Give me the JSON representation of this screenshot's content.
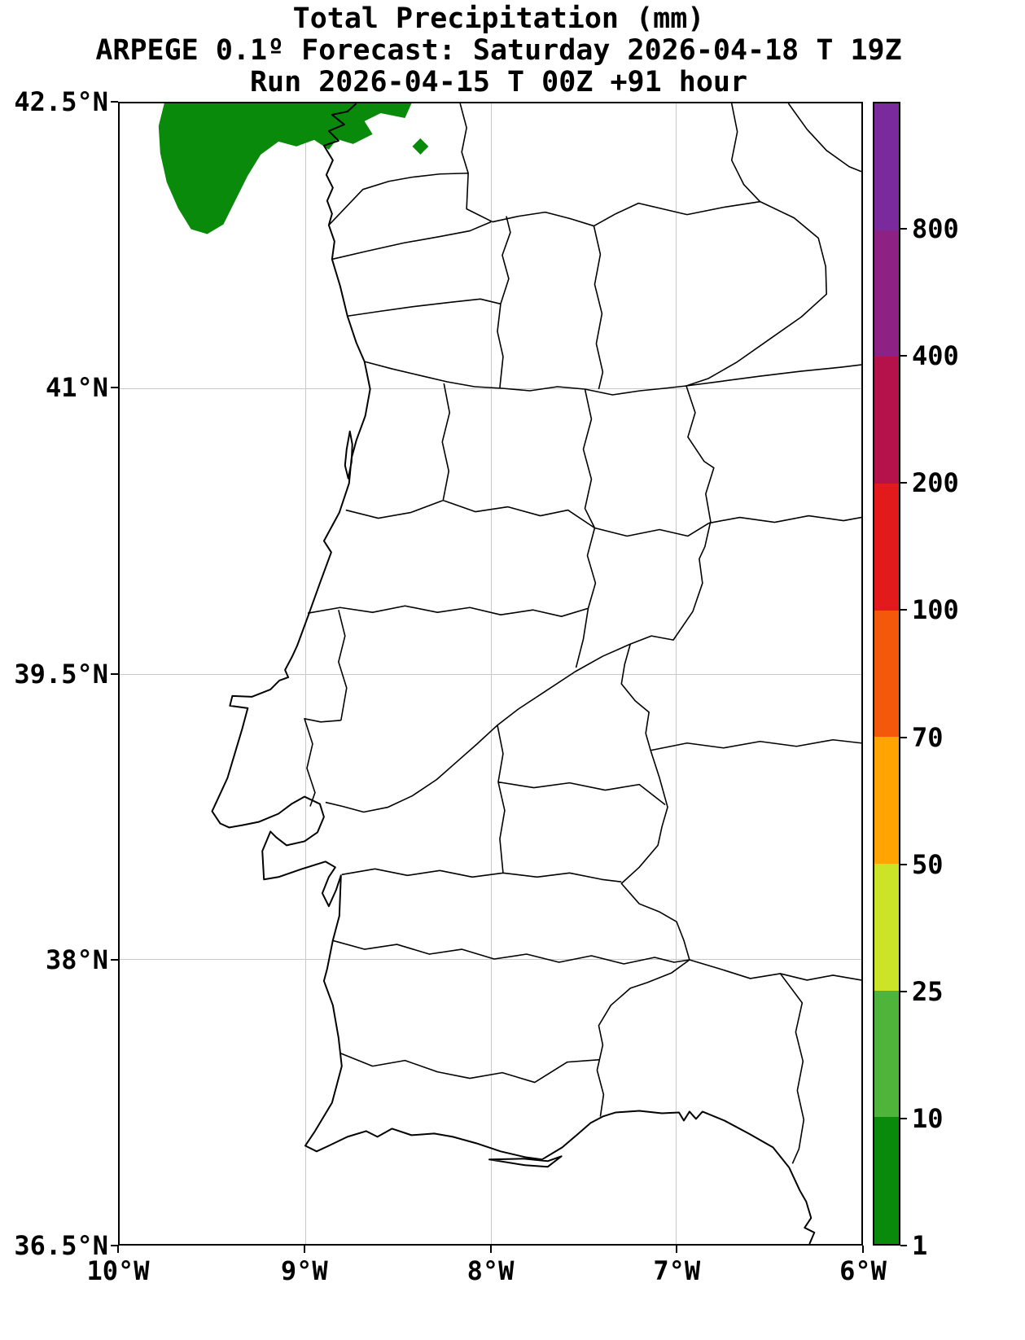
{
  "titles": {
    "line1": "Total Precipitation (mm)",
    "line2": "ARPEGE 0.1º Forecast: Saturday 2026-04-18 T 19Z",
    "line3": "Run 2026-04-15 T 00Z +91 hour"
  },
  "map": {
    "y_ticks": [
      {
        "label": "42.5°N",
        "pos": 0
      },
      {
        "label": "41°N",
        "pos": 0.25
      },
      {
        "label": "39.5°N",
        "pos": 0.5
      },
      {
        "label": "38°N",
        "pos": 0.75
      },
      {
        "label": "36.5°N",
        "pos": 1
      }
    ],
    "x_ticks": [
      {
        "label": "10°W",
        "pos": 0
      },
      {
        "label": "9°W",
        "pos": 0.25
      },
      {
        "label": "8°W",
        "pos": 0.5
      },
      {
        "label": "7°W",
        "pos": 0.75
      },
      {
        "label": "6°W",
        "pos": 1
      }
    ],
    "grid_color": "#c8c8c8",
    "line_color": "#000000"
  },
  "colorbar": {
    "tick_labels": [
      "800",
      "400",
      "200",
      "100",
      "70",
      "50",
      "25",
      "10",
      "1"
    ],
    "segment_colors_top_to_bottom": [
      "#7a2a9d",
      "#8e2184",
      "#b5124b",
      "#e31a1c",
      "#f4580a",
      "#ffa400",
      "#cbe427",
      "#4fb43a",
      "#0a8a0a"
    ]
  },
  "chart_data": {
    "type": "heatmap",
    "title": "Total Precipitation (mm)",
    "model": "ARPEGE 0.1º",
    "valid_time": "Saturday 2026-04-18 T 19Z",
    "run_time": "2026-04-15 T 00Z",
    "lead_hours": 91,
    "extent": {
      "lon_west_deg": 10,
      "lon_east_deg": 6,
      "lat_south_deg_n": 36.5,
      "lat_north_deg_n": 42.5
    },
    "levels_mm": [
      1,
      10,
      25,
      50,
      70,
      100,
      200,
      400,
      800
    ],
    "level_colors_low_to_high": [
      "#0a8a0a",
      "#4fb43a",
      "#cbe427",
      "#ffa400",
      "#f4580a",
      "#e31a1c",
      "#b5124b",
      "#8e2184",
      "#7a2a9d"
    ],
    "data_regions": [
      {
        "value_range_mm": "1-10",
        "location": "Atlantic ocean and Galician coast, northwest corner of domain (approx 42.1-42.5N, 8.2-9.8W)"
      },
      {
        "value_range_mm": "1-10",
        "location": "small isolated diamond-shaped spot near 42.3N 8.4W"
      }
    ],
    "grid": true,
    "legend_position": "right colorbar",
    "region_shown": "Portugal and western Spain with district/province boundaries"
  }
}
